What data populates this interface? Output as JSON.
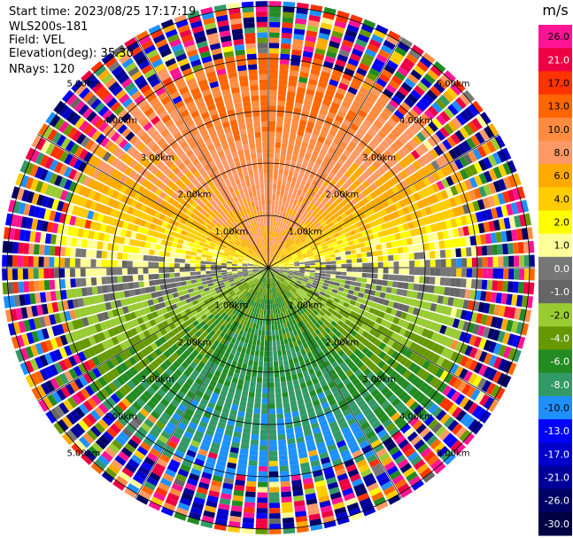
{
  "header": {
    "start_time": "Start time: 2023/08/25 17:17:19",
    "instrument": "WLS200s-181",
    "field": "Field: VEL",
    "elevation": "Elevation(deg): 35.30",
    "nrays": "NRays: 120"
  },
  "colorbar": {
    "unit": "m/s",
    "ticks": [
      "26.0",
      "21.0",
      "17.0",
      "13.0",
      "10.0",
      "8.0",
      "6.0",
      "4.0",
      "2.0",
      "1.0",
      "0.0",
      "-1.0",
      "-2.0",
      "-4.0",
      "-6.0",
      "-8.0",
      "-10.0",
      "-13.0",
      "-17.0",
      "-21.0",
      "-26.0",
      "-30.0"
    ],
    "colors": [
      "#ff1493",
      "#ee0044",
      "#ff3300",
      "#ff6600",
      "#ff8c40",
      "#ff9966",
      "#ffaa00",
      "#ffcc00",
      "#ffff00",
      "#ffff99",
      "#777777",
      "#666666",
      "#99cc33",
      "#669900",
      "#228b22",
      "#339966",
      "#1e90ff",
      "#0000ff",
      "#0000cc",
      "#000099",
      "#000066",
      "#000044"
    ]
  },
  "chart_data": {
    "type": "ppi",
    "field": "VEL",
    "unit": "m/s",
    "nrays": 120,
    "elevation_deg": 35.3,
    "range_rings_km": [
      1,
      2,
      3,
      4,
      5
    ],
    "ring_labels": [
      "1.00km",
      "2.00km",
      "3.00km",
      "4.00km",
      "5.00km"
    ],
    "max_range_km": 5.1,
    "velocity_pattern": {
      "north_velocity": 10.0,
      "south_velocity": -10.0,
      "east_west_velocity": 0.0,
      "noisy_beyond_km": 4.0
    }
  }
}
